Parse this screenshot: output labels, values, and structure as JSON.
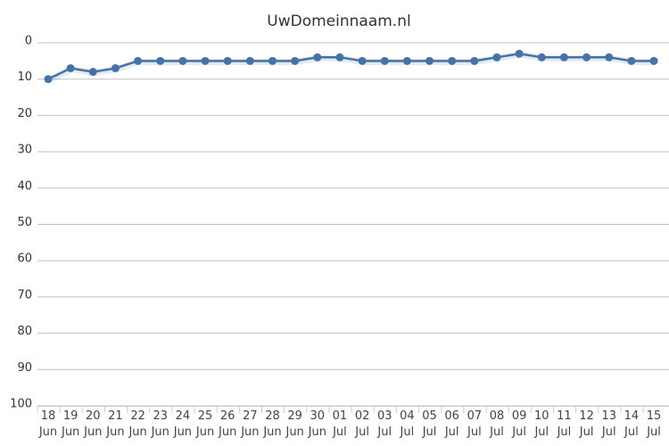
{
  "chart_data": {
    "type": "line",
    "title": "UwDomeinnaam.nl",
    "categories": [
      "18 Jun",
      "19 Jun",
      "20 Jun",
      "21 Jun",
      "22 Jun",
      "23 Jun",
      "24 Jun",
      "25 Jun",
      "26 Jun",
      "27 Jun",
      "28 Jun",
      "29 Jun",
      "30 Jun",
      "01 Jul",
      "02 Jul",
      "03 Jul",
      "04 Jul",
      "05 Jul",
      "06 Jul",
      "07 Jul",
      "08 Jul",
      "09 Jul",
      "10 Jul",
      "11 Jul",
      "12 Jul",
      "13 Jul",
      "14 Jul",
      "15 Jul"
    ],
    "series": [
      {
        "color": "#4572a7",
        "values": [
          10,
          7,
          8,
          7,
          5,
          5,
          5,
          5,
          5,
          5,
          5,
          5,
          4,
          4,
          5,
          5,
          5,
          5,
          5,
          5,
          4,
          3,
          4,
          4,
          4,
          4,
          5,
          5
        ]
      }
    ],
    "ylim": [
      0,
      100
    ],
    "y_reversed": true,
    "yticks": [
      0,
      10,
      20,
      30,
      40,
      50,
      60,
      70,
      80,
      90,
      100
    ],
    "grid": true
  }
}
